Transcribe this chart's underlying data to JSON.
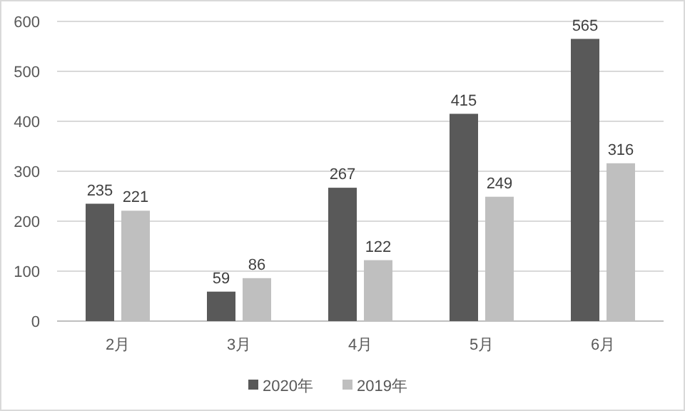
{
  "chart_data": {
    "type": "bar",
    "categories": [
      "2月",
      "3月",
      "4月",
      "5月",
      "6月"
    ],
    "series": [
      {
        "name": "2020年",
        "color": "#595959",
        "values": [
          235,
          59,
          267,
          415,
          565
        ]
      },
      {
        "name": "2019年",
        "color": "#bfbfbf",
        "values": [
          221,
          86,
          122,
          249,
          316
        ]
      }
    ],
    "ylim": [
      0,
      600
    ],
    "yticks": [
      0,
      100,
      200,
      300,
      400,
      500,
      600
    ],
    "grid": "y",
    "legend": "bottom",
    "data_labels": true
  }
}
